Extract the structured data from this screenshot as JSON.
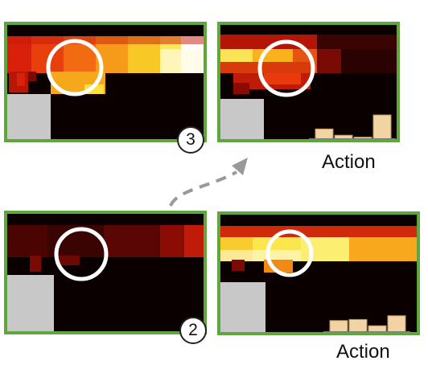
{
  "panels": [
    {
      "id": "top-left",
      "badge": "3",
      "action_label": null
    },
    {
      "id": "top-right",
      "badge": null,
      "action_label": "Action",
      "action_values": [
        0.42,
        0.16,
        0.08,
        1.0
      ]
    },
    {
      "id": "bottom-left",
      "badge": "2",
      "action_label": null
    },
    {
      "id": "bottom-right",
      "badge": null,
      "action_label": "Action",
      "action_values": [
        0.55,
        0.6,
        0.3,
        0.78
      ]
    }
  ],
  "colors": {
    "frame": "#5fa63f",
    "background": "#0a0000",
    "agent_block": "#c8c8c8",
    "focus_circle": "#ffffff",
    "action_bar": "#f2d3a3",
    "arrow": "#999999"
  }
}
